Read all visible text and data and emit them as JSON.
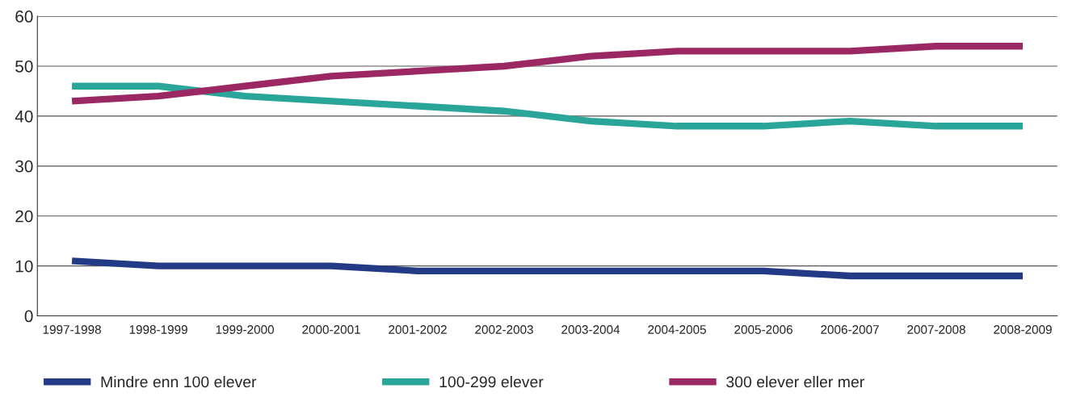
{
  "chart_data": {
    "type": "line",
    "categories": [
      "1997-1998",
      "1998-1999",
      "1999-2000",
      "2000-2001",
      "2001-2002",
      "2002-2003",
      "2003-2004",
      "2004-2005",
      "2005-2006",
      "2006-2007",
      "2007-2008",
      "2008-2009"
    ],
    "series": [
      {
        "name": "Mindre enn 100 elever",
        "color": "#233a86",
        "values": [
          11,
          10,
          10,
          10,
          9,
          9,
          9,
          9,
          9,
          8,
          8,
          8
        ]
      },
      {
        "name": "100-299 elever",
        "color": "#2aa59a",
        "values": [
          46,
          46,
          44,
          43,
          42,
          41,
          39,
          38,
          38,
          39,
          38,
          38
        ]
      },
      {
        "name": "300 elever eller mer",
        "color": "#9b2863",
        "values": [
          43,
          44,
          46,
          48,
          49,
          50,
          52,
          53,
          53,
          53,
          54,
          54
        ]
      }
    ],
    "ylim": [
      0,
      60
    ],
    "yticks": [
      0,
      10,
      20,
      30,
      40,
      50,
      60
    ],
    "grid": "y",
    "legend": "bottom",
    "marker": "none",
    "line_style": "solid"
  }
}
